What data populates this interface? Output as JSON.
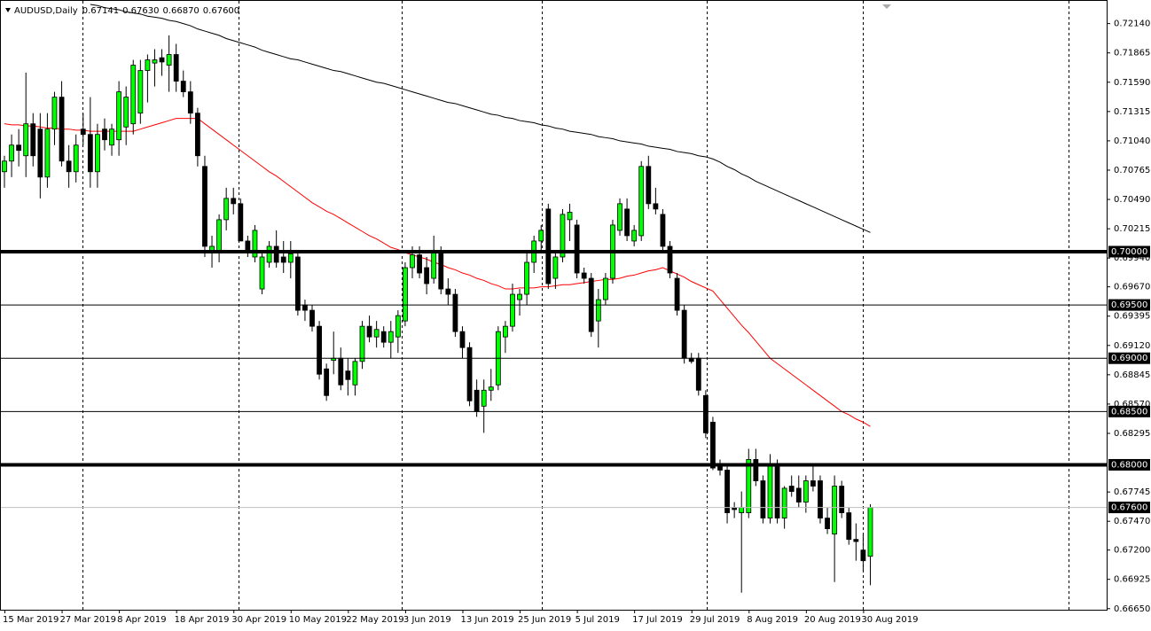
{
  "chart_data": {
    "type": "candlestick",
    "header": {
      "symbol": "AUDUSD,Daily",
      "ohlc": [
        "0.67141",
        "0.67630",
        "0.66870",
        "0.67600"
      ]
    },
    "categories": [
      "15 Mar 2019",
      null,
      null,
      null,
      null,
      null,
      null,
      null,
      "27 Mar 2019",
      null,
      null,
      null,
      null,
      null,
      null,
      null,
      "8 Apr 2019",
      null,
      null,
      null,
      null,
      null,
      null,
      null,
      "18 Apr 2019",
      null,
      null,
      null,
      null,
      null,
      null,
      null,
      "30 Apr 2019",
      null,
      null,
      null,
      null,
      null,
      null,
      null,
      "10 May 2019",
      null,
      null,
      null,
      null,
      null,
      null,
      null,
      "22 May 2019",
      null,
      null,
      null,
      null,
      null,
      null,
      null,
      "3 Jun 2019",
      null,
      null,
      null,
      null,
      null,
      null,
      null,
      "13 Jun 2019",
      null,
      null,
      null,
      null,
      null,
      null,
      null,
      "25 Jun 2019",
      null,
      null,
      null,
      null,
      null,
      null,
      null,
      "5 Jul 2019",
      null,
      null,
      null,
      null,
      null,
      null,
      null,
      "17 Jul 2019",
      null,
      null,
      null,
      null,
      null,
      null,
      null,
      "29 Jul 2019",
      null,
      null,
      null,
      null,
      null,
      null,
      null,
      "8 Aug 2019",
      null,
      null,
      null,
      null,
      null,
      null,
      null,
      "20 Aug 2019",
      null,
      null,
      null,
      null,
      null,
      null,
      null,
      "30 Aug 2019",
      null
    ],
    "open": [
      0.7075,
      0.7085,
      0.71,
      0.709,
      0.712,
      0.7115,
      0.707,
      0.7115,
      0.7145,
      0.7085,
      0.7075,
      0.7115,
      0.711,
      0.7075,
      0.7115,
      0.71,
      0.7105,
      0.7117,
      0.712,
      0.713,
      0.717,
      0.7177,
      0.7182,
      0.7175,
      0.7185,
      0.716,
      0.715,
      0.713,
      0.708,
      0.7,
      0.7,
      0.703,
      0.705,
      0.7045,
      0.701,
      0.6995,
      0.6965,
      0.699,
      0.7005,
      0.6995,
      0.699,
      0.6995,
      0.695,
      0.6945,
      0.693,
      0.689,
      0.6898,
      0.69,
      0.6888,
      0.6875,
      0.6897,
      0.693,
      0.692,
      0.6925,
      0.6915,
      0.692,
      0.6935,
      0.6985,
      0.6997,
      0.6985,
      0.6975,
      0.7,
      0.6965,
      0.696,
      0.6925,
      0.691,
      0.687,
      0.6855,
      0.687,
      0.6875,
      0.692,
      0.693,
      0.6955,
      0.696,
      0.699,
      0.701,
      0.704,
      0.6975,
      0.6995,
      0.703,
      0.7025,
      0.698,
      0.6975,
      0.6935,
      0.6955,
      0.6975,
      0.702,
      0.704,
      0.701,
      0.7015,
      0.708,
      0.7045,
      0.7035,
      0.7005,
      0.6975,
      0.6945,
      0.69,
      0.69,
      0.6865,
      0.684,
      0.68,
      0.6795,
      0.676,
      0.6755,
      0.6755,
      0.6805,
      0.6785,
      0.675,
      0.68,
      0.675,
      0.678,
      0.6778,
      0.6765,
      0.6785,
      0.6785,
      0.675,
      0.6735,
      0.678,
      0.6755,
      0.673,
      0.672,
      0.67141
    ],
    "high": [
      0.709,
      0.711,
      0.7115,
      0.7168,
      0.713,
      0.713,
      0.713,
      0.715,
      0.716,
      0.71,
      0.711,
      0.713,
      0.7145,
      0.712,
      0.7125,
      0.712,
      0.716,
      0.7155,
      0.718,
      0.718,
      0.7185,
      0.719,
      0.719,
      0.7203,
      0.7195,
      0.717,
      0.716,
      0.7135,
      0.709,
      0.7015,
      0.7035,
      0.706,
      0.706,
      0.705,
      0.7015,
      0.7025,
      0.7,
      0.701,
      0.702,
      0.701,
      0.701,
      0.7,
      0.6955,
      0.695,
      0.6935,
      0.6895,
      0.6925,
      0.691,
      0.69,
      0.69,
      0.6935,
      0.694,
      0.6935,
      0.693,
      0.6935,
      0.6945,
      0.699,
      0.7005,
      0.7005,
      0.6995,
      0.7015,
      0.7005,
      0.6975,
      0.6965,
      0.693,
      0.6915,
      0.688,
      0.688,
      0.689,
      0.693,
      0.6935,
      0.697,
      0.6965,
      0.7,
      0.7015,
      0.7025,
      0.7045,
      0.7,
      0.704,
      0.7045,
      0.703,
      0.6985,
      0.698,
      0.6965,
      0.698,
      0.703,
      0.705,
      0.705,
      0.7025,
      0.7085,
      0.709,
      0.706,
      0.704,
      0.701,
      0.698,
      0.695,
      0.6905,
      0.6905,
      0.687,
      0.6845,
      0.6805,
      0.68,
      0.6765,
      0.6775,
      0.6815,
      0.6815,
      0.679,
      0.681,
      0.6805,
      0.678,
      0.679,
      0.679,
      0.679,
      0.68,
      0.679,
      0.676,
      0.679,
      0.6785,
      0.676,
      0.6745,
      0.6735,
      0.6763
    ],
    "low": [
      0.706,
      0.707,
      0.708,
      0.707,
      0.708,
      0.705,
      0.706,
      0.71,
      0.708,
      0.706,
      0.7065,
      0.71,
      0.706,
      0.706,
      0.7095,
      0.709,
      0.709,
      0.71,
      0.711,
      0.712,
      0.714,
      0.7155,
      0.7165,
      0.715,
      0.715,
      0.7145,
      0.712,
      0.708,
      0.6995,
      0.6985,
      0.699,
      0.702,
      0.7035,
      0.701,
      0.6995,
      0.699,
      0.696,
      0.6985,
      0.6985,
      0.698,
      0.6975,
      0.694,
      0.6935,
      0.6925,
      0.688,
      0.686,
      0.6885,
      0.687,
      0.6865,
      0.6865,
      0.689,
      0.6915,
      0.691,
      0.691,
      0.69,
      0.6905,
      0.693,
      0.6975,
      0.6975,
      0.696,
      0.697,
      0.696,
      0.695,
      0.692,
      0.69,
      0.6855,
      0.6845,
      0.683,
      0.686,
      0.687,
      0.6905,
      0.6925,
      0.694,
      0.695,
      0.698,
      0.7,
      0.6965,
      0.6965,
      0.699,
      0.701,
      0.6975,
      0.697,
      0.692,
      0.691,
      0.695,
      0.697,
      0.7015,
      0.701,
      0.7005,
      0.701,
      0.704,
      0.7035,
      0.7,
      0.6975,
      0.694,
      0.6895,
      0.6895,
      0.6865,
      0.6825,
      0.6795,
      0.679,
      0.6745,
      0.675,
      0.668,
      0.675,
      0.678,
      0.6745,
      0.6745,
      0.6745,
      0.674,
      0.677,
      0.676,
      0.6755,
      0.6775,
      0.6745,
      0.6735,
      0.669,
      0.675,
      0.6725,
      0.671,
      0.67,
      0.6687
    ],
    "close": [
      0.7085,
      0.71,
      0.7095,
      0.712,
      0.709,
      0.707,
      0.7115,
      0.7145,
      0.7085,
      0.7075,
      0.71,
      0.711,
      0.7075,
      0.711,
      0.7105,
      0.7115,
      0.715,
      0.7145,
      0.7175,
      0.717,
      0.718,
      0.718,
      0.7178,
      0.7185,
      0.716,
      0.715,
      0.713,
      0.709,
      0.7005,
      0.7005,
      0.703,
      0.705,
      0.7045,
      0.701,
      0.7,
      0.702,
      0.6995,
      0.7005,
      0.699,
      0.699,
      0.6998,
      0.6945,
      0.6945,
      0.693,
      0.6885,
      0.6865,
      0.69,
      0.6875,
      0.688,
      0.6897,
      0.693,
      0.692,
      0.6927,
      0.6915,
      0.6925,
      0.694,
      0.6985,
      0.6997,
      0.698,
      0.697,
      0.7,
      0.6965,
      0.696,
      0.6925,
      0.691,
      0.686,
      0.685,
      0.687,
      0.6873,
      0.6925,
      0.693,
      0.696,
      0.696,
      0.699,
      0.701,
      0.702,
      0.697,
      0.6995,
      0.7035,
      0.7037,
      0.698,
      0.6975,
      0.6925,
      0.6955,
      0.6975,
      0.7025,
      0.7045,
      0.7015,
      0.702,
      0.708,
      0.7045,
      0.704,
      0.7005,
      0.698,
      0.6945,
      0.69,
      0.6897,
      0.687,
      0.683,
      0.6797,
      0.6795,
      0.6755,
      0.6758,
      0.676,
      0.6805,
      0.6785,
      0.675,
      0.68,
      0.675,
      0.6778,
      0.6775,
      0.6765,
      0.6785,
      0.678,
      0.675,
      0.674,
      0.678,
      0.6755,
      0.673,
      0.6728,
      0.671,
      0.676
    ],
    "up_color": "#00ff00",
    "down_color": "#000000",
    "series": [
      {
        "color": "#ff0000",
        "values": [
          0.712,
          0.7119,
          0.7119,
          0.7118,
          0.7118,
          0.7117,
          0.7116,
          0.7116,
          0.7115,
          0.7115,
          0.7114,
          0.7114,
          0.7113,
          0.7113,
          0.7113,
          0.7113,
          0.7113,
          0.7113,
          0.7113,
          0.7115,
          0.7117,
          0.7119,
          0.7121,
          0.7123,
          0.7125,
          0.7125,
          0.7125,
          0.7125,
          0.712,
          0.7115,
          0.711,
          0.7105,
          0.71,
          0.7095,
          0.709,
          0.7085,
          0.708,
          0.7075,
          0.7071,
          0.7066,
          0.7061,
          0.7056,
          0.7051,
          0.7046,
          0.7042,
          0.7038,
          0.7035,
          0.7031,
          0.7027,
          0.7023,
          0.7019,
          0.7015,
          0.7012,
          0.7008,
          0.7004,
          0.7002,
          0.6999,
          0.6997,
          0.6995,
          0.6993,
          0.699,
          0.6988,
          0.6985,
          0.6983,
          0.698,
          0.6978,
          0.6975,
          0.6973,
          0.697,
          0.6968,
          0.6965,
          0.6965,
          0.6966,
          0.6966,
          0.6966,
          0.6967,
          0.6967,
          0.6968,
          0.6969,
          0.6969,
          0.697,
          0.6971,
          0.6972,
          0.6973,
          0.6974,
          0.6974,
          0.6975,
          0.6977,
          0.6978,
          0.698,
          0.6982,
          0.6983,
          0.6985,
          0.6982,
          0.6979,
          0.6976,
          0.6972,
          0.6969,
          0.6966,
          0.6963,
          0.6955,
          0.6947,
          0.6939,
          0.6931,
          0.6924,
          0.6916,
          0.6908,
          0.69,
          0.6895,
          0.689,
          0.6885,
          0.688,
          0.6875,
          0.687,
          0.6865,
          0.686,
          0.6855,
          0.685,
          0.6847,
          0.6843,
          0.684,
          0.6836
        ]
      },
      {
        "color": "#000000",
        "values": [
          null,
          null,
          null,
          null,
          null,
          null,
          null,
          null,
          null,
          null,
          null,
          null,
          0.7232,
          0.7231,
          0.7229,
          0.7228,
          0.7227,
          0.7225,
          0.7224,
          0.7223,
          0.7221,
          0.722,
          0.7219,
          0.7217,
          0.7216,
          0.7214,
          0.7212,
          0.7209,
          0.7207,
          0.7205,
          0.7203,
          0.72,
          0.7198,
          0.7196,
          0.7194,
          0.7192,
          0.7189,
          0.7187,
          0.7185,
          0.7183,
          0.7181,
          0.718,
          0.7178,
          0.7176,
          0.7174,
          0.7172,
          0.717,
          0.7169,
          0.7167,
          0.7165,
          0.7163,
          0.7161,
          0.7159,
          0.7158,
          0.7156,
          0.7154,
          0.7152,
          0.715,
          0.7148,
          0.7146,
          0.7144,
          0.7142,
          0.714,
          0.7139,
          0.7137,
          0.7135,
          0.7133,
          0.7131,
          0.7129,
          0.7128,
          0.7126,
          0.7125,
          0.7123,
          0.7122,
          0.7121,
          0.7119,
          0.7118,
          0.7116,
          0.7115,
          0.7113,
          0.7112,
          0.7111,
          0.711,
          0.7108,
          0.7107,
          0.7106,
          0.7104,
          0.7103,
          0.7102,
          0.7101,
          0.7099,
          0.7098,
          0.7097,
          0.7096,
          0.7094,
          0.7093,
          0.7092,
          0.709,
          0.7089,
          0.7087,
          0.7084,
          0.708,
          0.7077,
          0.7073,
          0.707,
          0.7066,
          0.7063,
          0.706,
          0.7057,
          0.7054,
          0.7051,
          0.7048,
          0.7045,
          0.7042,
          0.7039,
          0.7036,
          0.7033,
          0.703,
          0.7027,
          0.7024,
          0.7021,
          0.7018
        ]
      }
    ],
    "levels": [
      {
        "value": 0.7,
        "label": "0.70000",
        "style": "thick"
      },
      {
        "value": 0.695,
        "label": "0.69500",
        "style": "thin"
      },
      {
        "value": 0.69,
        "label": "0.69000",
        "style": "thin"
      },
      {
        "value": 0.685,
        "label": "0.68500",
        "style": "thin"
      },
      {
        "value": 0.68,
        "label": "0.68000",
        "style": "thick"
      },
      {
        "value": 0.676,
        "label": "0.67600",
        "style": "bid"
      }
    ],
    "ylim": [
      0.6664,
      0.7232
    ],
    "yticks": [
      {
        "value": 0.7214,
        "label": "0.72140"
      },
      {
        "value": 0.71865,
        "label": "0.71865"
      },
      {
        "value": 0.7159,
        "label": "0.71590"
      },
      {
        "value": 0.71315,
        "label": "0.71315"
      },
      {
        "value": 0.7104,
        "label": "0.71040"
      },
      {
        "value": 0.70765,
        "label": "0.70765"
      },
      {
        "value": 0.7049,
        "label": "0.70490"
      },
      {
        "value": 0.70215,
        "label": "0.70215"
      },
      {
        "value": 0.6994,
        "label": "0.69940"
      },
      {
        "value": 0.6967,
        "label": "0.69670"
      },
      {
        "value": 0.69395,
        "label": "0.69395"
      },
      {
        "value": 0.6912,
        "label": "0.69120"
      },
      {
        "value": 0.68845,
        "label": "0.68845"
      },
      {
        "value": 0.6857,
        "label": "0.68570"
      },
      {
        "value": 0.68295,
        "label": "0.68295"
      },
      {
        "value": 0.67745,
        "label": "0.67745"
      },
      {
        "value": 0.6747,
        "label": "0.67470"
      },
      {
        "value": 0.672,
        "label": "0.67200"
      },
      {
        "value": 0.66925,
        "label": "0.66925"
      },
      {
        "value": 0.6665,
        "label": "0.66650"
      }
    ]
  }
}
